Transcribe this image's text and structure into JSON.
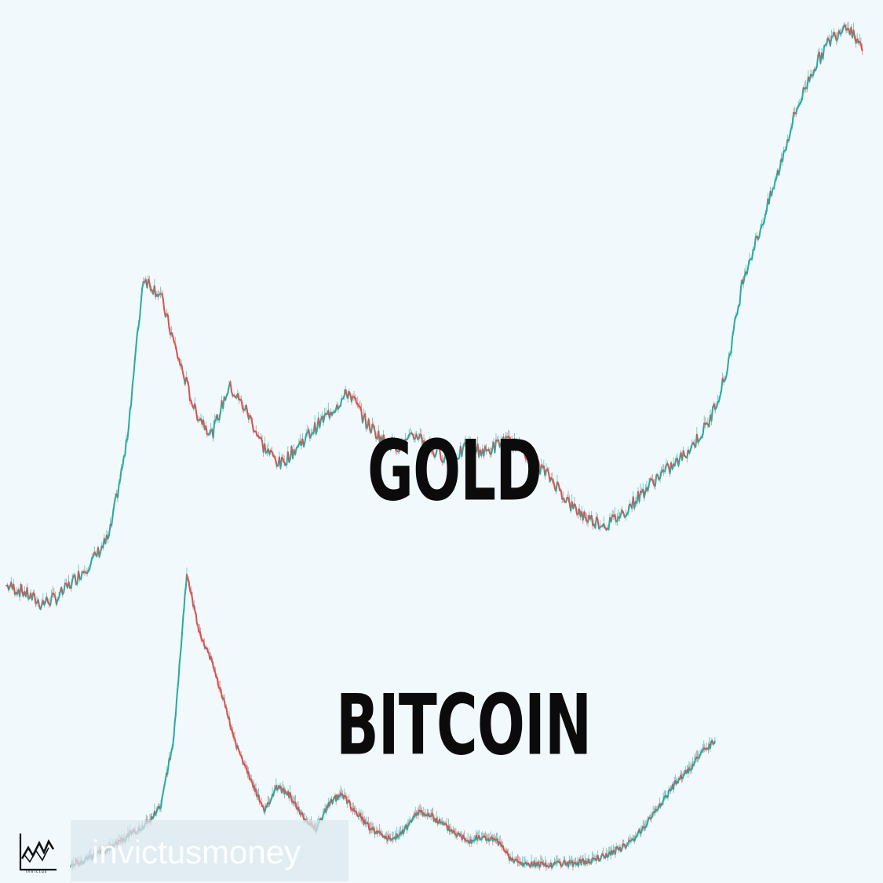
{
  "labels": {
    "gold": "GOLD",
    "bitcoin": "BITCOIN",
    "watermark": "invictusmoney",
    "logo_caption": "invictus"
  },
  "colors": {
    "background": "#f1f9fc",
    "up": "#2aa9a0",
    "down": "#d9534f",
    "label": "#0b0b0b"
  },
  "chart_data": [
    {
      "type": "line",
      "series": [
        {
          "name": "GOLD",
          "x": [
            0,
            2,
            4,
            6,
            8,
            10,
            12,
            14,
            16,
            18,
            20,
            22,
            24,
            26,
            28,
            30,
            32,
            34,
            36,
            38,
            40,
            42,
            44,
            46,
            48,
            50,
            52,
            54,
            56,
            58,
            60,
            62,
            64,
            66,
            68,
            70,
            72,
            74,
            76,
            78,
            80,
            82,
            84,
            86,
            88,
            90,
            92,
            94,
            96,
            98,
            100
          ],
          "values": [
            7,
            6,
            4,
            5,
            8,
            11,
            15,
            30,
            58,
            55,
            45,
            36,
            32,
            40,
            36,
            30,
            27,
            30,
            33,
            36,
            39,
            34,
            31,
            30,
            32,
            29,
            28,
            30,
            29,
            31,
            30,
            27,
            24,
            20,
            18,
            17,
            19,
            22,
            25,
            27,
            30,
            34,
            42,
            58,
            66,
            75,
            85,
            92,
            97,
            100,
            96
          ]
        }
      ],
      "ylim": [
        0,
        100
      ]
    },
    {
      "type": "line",
      "series": [
        {
          "name": "BITCOIN",
          "x": [
            0,
            2,
            4,
            6,
            8,
            10,
            12,
            14,
            16,
            18,
            20,
            22,
            24,
            26,
            28,
            30,
            32,
            34,
            36,
            38,
            40,
            42,
            44,
            46,
            48,
            50,
            52,
            54,
            56,
            58,
            60,
            62,
            64,
            66,
            68,
            70,
            72,
            74,
            76,
            78,
            80,
            82,
            84,
            86,
            88,
            90,
            92,
            94,
            96,
            98,
            100
          ],
          "values": [
            2,
            3,
            5,
            7,
            10,
            13,
            16,
            22,
            45,
            100,
            80,
            70,
            55,
            40,
            30,
            20,
            28,
            25,
            18,
            14,
            22,
            26,
            20,
            15,
            12,
            10,
            14,
            20,
            18,
            15,
            12,
            10,
            11,
            10,
            4,
            2,
            2,
            1,
            2,
            2,
            3,
            4,
            6,
            8,
            12,
            18,
            24,
            30,
            34,
            40,
            44
          ]
        }
      ],
      "ylim": [
        0,
        100
      ]
    }
  ]
}
